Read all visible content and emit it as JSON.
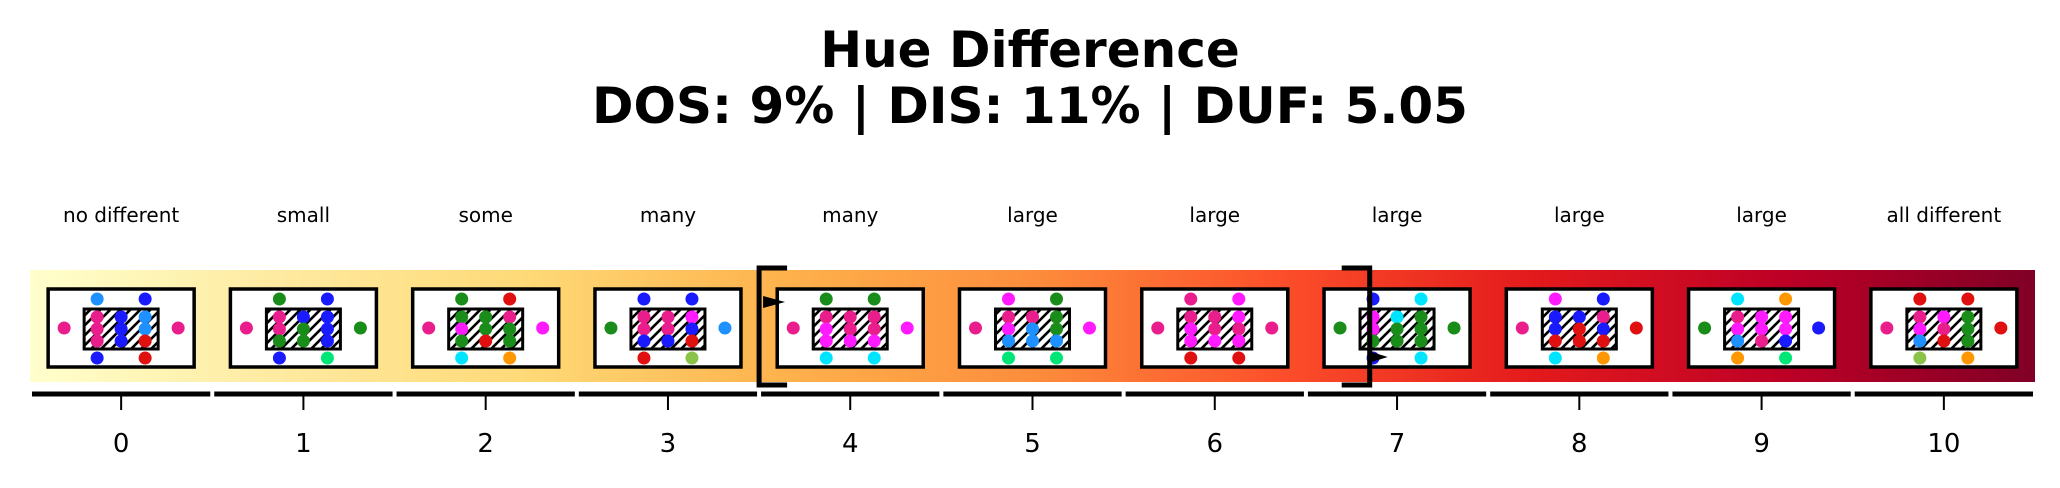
{
  "title": {
    "line1": "Hue Difference",
    "line2": "DOS: 9% | DIS: 11% | DUF: 5.05"
  },
  "scale": {
    "min": 0,
    "max": 10,
    "bracket_range": [
      3.5,
      6.85
    ],
    "gradient_colors": [
      "#ffffcc",
      "#feeaa0",
      "#fed976",
      "#feb24c",
      "#fd8d3c",
      "#fc4e2a",
      "#e31a1c",
      "#bd0026",
      "#800026"
    ],
    "levels": [
      {
        "value": 0,
        "tick": "0",
        "label": "no different",
        "inner": [
          [
            "#e91e8c",
            "#1a1aff",
            "#1e90ff"
          ],
          [
            "#e91e8c",
            "#1a1aff",
            "#1e90ff"
          ],
          [
            "#e91e8c",
            "#1a1aff",
            "#e01010"
          ]
        ],
        "top": [
          "#1e90ff",
          "#1a1aff"
        ],
        "bottom": [
          "#1a1aff",
          "#e01010"
        ],
        "left": "#e91e8c",
        "right": "#e91e8c"
      },
      {
        "value": 1,
        "tick": "1",
        "label": "small",
        "inner": [
          [
            "#e91e8c",
            "#1a1aff",
            "#1a1aff"
          ],
          [
            "#e91e8c",
            "#1a8c1a",
            "#1a1aff"
          ],
          [
            "#1a8c1a",
            "#1a8c1a",
            "#1a1aff"
          ]
        ],
        "top": [
          "#1a8c1a",
          "#1a1aff"
        ],
        "bottom": [
          "#1a1aff",
          "#00e676"
        ],
        "left": "#e91e8c",
        "right": "#1a8c1a"
      },
      {
        "value": 2,
        "tick": "2",
        "label": "some",
        "inner": [
          [
            "#1a8c1a",
            "#1a8c1a",
            "#e91e8c"
          ],
          [
            "#ff1aff",
            "#1a8c1a",
            "#1a8c1a"
          ],
          [
            "#1a8c1a",
            "#e01010",
            "#1a8c1a"
          ]
        ],
        "top": [
          "#1a8c1a",
          "#e01010"
        ],
        "bottom": [
          "#00e5ff",
          "#ff9800"
        ],
        "left": "#e91e8c",
        "right": "#ff1aff"
      },
      {
        "value": 3,
        "tick": "3",
        "label": "many",
        "inner": [
          [
            "#e91e8c",
            "#e91e8c",
            "#ff1aff"
          ],
          [
            "#e91e8c",
            "#e91e8c",
            "#1a1aff"
          ],
          [
            "#1a1aff",
            "#1a1aff",
            "#e01010"
          ]
        ],
        "top": [
          "#1a1aff",
          "#1a1aff"
        ],
        "bottom": [
          "#e01010",
          "#8bc34a"
        ],
        "left": "#1a8c1a",
        "right": "#1e90ff"
      },
      {
        "value": 4,
        "tick": "4",
        "label": "many",
        "inner": [
          [
            "#e91e8c",
            "#e91e8c",
            "#e91e8c"
          ],
          [
            "#ff1aff",
            "#e91e8c",
            "#e91e8c"
          ],
          [
            "#ff1aff",
            "#ff1aff",
            "#ff1aff"
          ]
        ],
        "top": [
          "#1a8c1a",
          "#1a8c1a"
        ],
        "bottom": [
          "#00e5ff",
          "#00e5ff"
        ],
        "left": "#e91e8c",
        "right": "#ff1aff"
      },
      {
        "value": 5,
        "tick": "5",
        "label": "large",
        "inner": [
          [
            "#e91e8c",
            "#e91e8c",
            "#1a8c1a"
          ],
          [
            "#ff1aff",
            "#1e90ff",
            "#1a8c1a"
          ],
          [
            "#1e90ff",
            "#1e90ff",
            "#1e90ff"
          ]
        ],
        "top": [
          "#ff1aff",
          "#1a8c1a"
        ],
        "bottom": [
          "#00e676",
          "#00e676"
        ],
        "left": "#e91e8c",
        "right": "#ff1aff"
      },
      {
        "value": 6,
        "tick": "6",
        "label": "large",
        "inner": [
          [
            "#e91e8c",
            "#e91e8c",
            "#ff1aff"
          ],
          [
            "#ff1aff",
            "#e91e8c",
            "#e91e8c"
          ],
          [
            "#ff1aff",
            "#ff1aff",
            "#ff1aff"
          ]
        ],
        "top": [
          "#e91e8c",
          "#ff1aff"
        ],
        "bottom": [
          "#e01010",
          "#e01010"
        ],
        "left": "#e91e8c",
        "right": "#e91e8c"
      },
      {
        "value": 7,
        "tick": "7",
        "label": "large",
        "inner": [
          [
            "#ff1aff",
            "#00e5ff",
            "#1a8c1a"
          ],
          [
            "#ff1aff",
            "#1a8c1a",
            "#1a8c1a"
          ],
          [
            "#1a8c1a",
            "#1a8c1a",
            "#1a8c1a"
          ]
        ],
        "top": [
          "#1a1aff",
          "#00e5ff"
        ],
        "bottom": [
          "#1a1aff",
          "#00e5ff"
        ],
        "left": "#1a8c1a",
        "right": "#1a8c1a"
      },
      {
        "value": 8,
        "tick": "8",
        "label": "large",
        "inner": [
          [
            "#1a1aff",
            "#1a1aff",
            "#e91e8c"
          ],
          [
            "#1a1aff",
            "#e01010",
            "#1a1aff"
          ],
          [
            "#e01010",
            "#e01010",
            "#e01010"
          ]
        ],
        "top": [
          "#ff1aff",
          "#1a1aff"
        ],
        "bottom": [
          "#00e5ff",
          "#ff9800"
        ],
        "left": "#e91e8c",
        "right": "#e01010"
      },
      {
        "value": 9,
        "tick": "9",
        "label": "large",
        "inner": [
          [
            "#e91e8c",
            "#ff1aff",
            "#ff1aff"
          ],
          [
            "#ff1aff",
            "#ff1aff",
            "#ff1aff"
          ],
          [
            "#1e90ff",
            "#e91e8c",
            "#1a1aff"
          ]
        ],
        "top": [
          "#00e5ff",
          "#ff9800"
        ],
        "bottom": [
          "#ff9800",
          "#00e676"
        ],
        "left": "#1a8c1a",
        "right": "#1a1aff"
      },
      {
        "value": 10,
        "tick": "10",
        "label": "all different",
        "inner": [
          [
            "#e91e8c",
            "#ff1aff",
            "#1a8c1a"
          ],
          [
            "#ff1aff",
            "#e91e8c",
            "#1a8c1a"
          ],
          [
            "#1e90ff",
            "#e01010",
            "#1a8c1a"
          ]
        ],
        "top": [
          "#e01010",
          "#e01010"
        ],
        "bottom": [
          "#8bc34a",
          "#ff9800"
        ],
        "left": "#e91e8c",
        "right": "#e01010"
      }
    ]
  }
}
